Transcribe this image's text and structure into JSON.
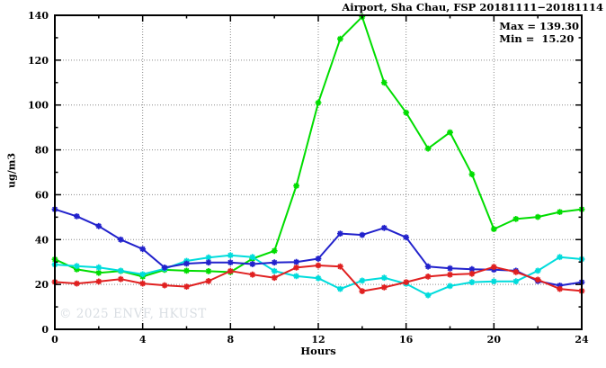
{
  "header": {
    "title": "Airport, Sha Chau, FSP 20181111−20181114"
  },
  "stats": {
    "max_line": "Max = 139.30",
    "min_line": "Min =  15.20",
    "max_value": 139.3,
    "min_value": 15.2
  },
  "watermark": "© 2025  ENVF, HKUST",
  "chart_data": {
    "type": "line",
    "title": "Airport, Sha Chau, FSP 20181111-20181114",
    "xlabel": "Hours",
    "ylabel": "ug/m3",
    "xlim": [
      0,
      24
    ],
    "ylim": [
      0,
      140
    ],
    "x_major_ticks": [
      0,
      4,
      8,
      12,
      16,
      20,
      24
    ],
    "x_minor_ticks": [
      2,
      6,
      10,
      14,
      18,
      22
    ],
    "y_major_ticks": [
      0,
      20,
      40,
      60,
      80,
      100,
      120,
      140
    ],
    "y_minor_ticks": [
      10,
      30,
      50,
      70,
      90,
      110,
      130
    ],
    "grid": "dotted",
    "legend": "none",
    "x": [
      0,
      1,
      2,
      3,
      4,
      5,
      6,
      7,
      8,
      9,
      10,
      11,
      12,
      13,
      14,
      15,
      16,
      17,
      18,
      19,
      20,
      21,
      22,
      23,
      24
    ],
    "series": [
      {
        "name": "green-series",
        "color": "#00dd00",
        "values": [
          31.2,
          26.7,
          25.2,
          26.0,
          23.5,
          26.5,
          26.1,
          25.9,
          25.5,
          31.5,
          35.0,
          64.0,
          101.0,
          129.5,
          139.3,
          110.0,
          96.6,
          80.6,
          87.8,
          69.1,
          44.7,
          49.2,
          50.1,
          52.3,
          53.5
        ]
      },
      {
        "name": "cyan-series",
        "color": "#00dcdc",
        "values": [
          28.9,
          28.2,
          27.6,
          26.1,
          24.5,
          27.0,
          30.5,
          32.0,
          33.0,
          32.2,
          26.0,
          23.7,
          22.8,
          18.0,
          21.7,
          23.0,
          20.3,
          15.2,
          19.3,
          21.0,
          21.4,
          21.4,
          26.1,
          32.2,
          31.3
        ]
      },
      {
        "name": "blue-series",
        "color": "#2222cc",
        "values": [
          53.5,
          50.4,
          46.0,
          40.0,
          35.8,
          27.5,
          29.3,
          29.8,
          29.8,
          29.1,
          29.8,
          30.0,
          31.5,
          42.7,
          42.1,
          45.2,
          41.0,
          28.0,
          27.2,
          26.8,
          26.6,
          26.1,
          21.5,
          19.5,
          21.0
        ]
      },
      {
        "name": "red-series",
        "color": "#e02020",
        "values": [
          21.1,
          20.4,
          21.3,
          22.4,
          20.4,
          19.6,
          19.0,
          21.5,
          26.0,
          24.4,
          23.0,
          27.5,
          28.5,
          28.0,
          17.0,
          18.7,
          21.0,
          23.5,
          24.4,
          24.8,
          27.8,
          25.5,
          22.1,
          18.0,
          17.1
        ]
      }
    ]
  }
}
